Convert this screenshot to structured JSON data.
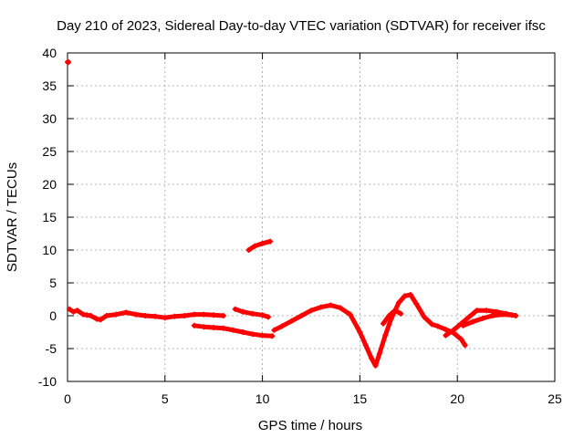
{
  "chart_data": {
    "type": "scatter",
    "title": "Day 210 of 2023, Sidereal Day-to-day VTEC variation (SDTVAR) for receiver ifsc",
    "xlabel": "GPS time / hours",
    "ylabel": "SDTVAR / TECUs",
    "xlim": [
      0,
      25
    ],
    "ylim": [
      -10,
      40
    ],
    "xticks": [
      0,
      5,
      10,
      15,
      20,
      25
    ],
    "yticks": [
      -10,
      -5,
      0,
      5,
      10,
      15,
      20,
      25,
      30,
      35,
      40
    ],
    "grid": true,
    "legend": "none",
    "color": "#ff0000",
    "series": [
      {
        "name": "SDTVAR",
        "segments": [
          [
            [
              0.0,
              38.6
            ],
            [
              0.05,
              38.6
            ]
          ],
          [
            [
              0.1,
              1.0
            ],
            [
              0.3,
              0.6
            ],
            [
              0.5,
              0.8
            ],
            [
              0.8,
              0.2
            ],
            [
              1.0,
              0.1
            ],
            [
              1.2,
              0.0
            ],
            [
              1.5,
              -0.5
            ],
            [
              1.7,
              -0.6
            ],
            [
              2.0,
              0.0
            ],
            [
              2.5,
              0.2
            ],
            [
              3.0,
              0.5
            ],
            [
              3.5,
              0.2
            ],
            [
              4.0,
              0.0
            ],
            [
              4.5,
              -0.1
            ],
            [
              5.0,
              -0.3
            ],
            [
              5.5,
              -0.1
            ],
            [
              6.0,
              0.0
            ],
            [
              6.5,
              0.2
            ],
            [
              7.0,
              0.2
            ],
            [
              7.5,
              0.1
            ],
            [
              8.0,
              0.0
            ]
          ],
          [
            [
              6.5,
              -1.5
            ],
            [
              7.0,
              -1.7
            ],
            [
              7.5,
              -1.8
            ],
            [
              8.0,
              -1.9
            ],
            [
              8.5,
              -2.2
            ],
            [
              9.0,
              -2.5
            ],
            [
              9.5,
              -2.8
            ],
            [
              10.0,
              -3.0
            ],
            [
              10.5,
              -3.1
            ]
          ],
          [
            [
              8.6,
              1.0
            ],
            [
              9.0,
              0.6
            ],
            [
              9.5,
              0.3
            ],
            [
              10.0,
              0.1
            ],
            [
              10.3,
              -0.2
            ]
          ],
          [
            [
              9.3,
              10.0
            ],
            [
              9.6,
              10.6
            ],
            [
              10.0,
              11.0
            ],
            [
              10.4,
              11.3
            ]
          ],
          [
            [
              10.6,
              -2.2
            ],
            [
              11.0,
              -1.6
            ],
            [
              11.5,
              -0.8
            ],
            [
              12.0,
              0.0
            ],
            [
              12.5,
              0.8
            ],
            [
              13.0,
              1.3
            ],
            [
              13.5,
              1.6
            ],
            [
              14.0,
              1.2
            ],
            [
              14.5,
              0.2
            ],
            [
              15.0,
              -2.5
            ],
            [
              15.3,
              -4.5
            ],
            [
              15.6,
              -6.5
            ],
            [
              15.8,
              -7.6
            ],
            [
              16.0,
              -5.8
            ],
            [
              16.3,
              -3.0
            ],
            [
              16.6,
              -0.5
            ],
            [
              17.0,
              2.0
            ],
            [
              17.3,
              3.0
            ],
            [
              17.6,
              3.2
            ],
            [
              17.9,
              1.8
            ],
            [
              18.3,
              -0.2
            ],
            [
              18.7,
              -1.3
            ],
            [
              19.0,
              -1.6
            ],
            [
              19.4,
              -2.1
            ],
            [
              19.8,
              -2.6
            ],
            [
              20.2,
              -3.6
            ],
            [
              20.4,
              -4.5
            ]
          ],
          [
            [
              16.2,
              -1.2
            ],
            [
              16.5,
              0.0
            ],
            [
              16.8,
              0.8
            ],
            [
              17.1,
              0.3
            ]
          ],
          [
            [
              19.4,
              -3.0
            ],
            [
              19.8,
              -2.2
            ],
            [
              20.2,
              -1.2
            ],
            [
              20.6,
              -0.2
            ],
            [
              21.0,
              0.8
            ],
            [
              21.5,
              0.8
            ],
            [
              22.0,
              0.6
            ],
            [
              22.5,
              0.3
            ],
            [
              23.0,
              0.0
            ]
          ],
          [
            [
              20.3,
              -1.5
            ],
            [
              20.8,
              -0.9
            ],
            [
              21.3,
              -0.4
            ],
            [
              21.8,
              0.0
            ],
            [
              22.3,
              0.2
            ],
            [
              22.8,
              0.1
            ]
          ]
        ]
      }
    ]
  }
}
